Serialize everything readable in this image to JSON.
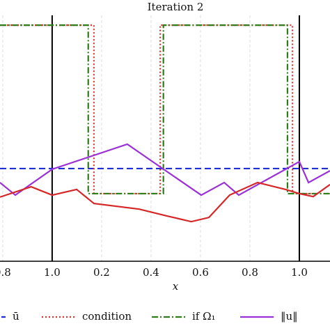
{
  "chart_data": {
    "type": "line",
    "title": "Iteration 2",
    "x_label": "x",
    "xlim": [
      -0.211,
      1.124
    ],
    "ylim": [
      0,
      1
    ],
    "grid": true,
    "xticks": [
      {
        "value": -0.2,
        "label": "0.8"
      },
      {
        "value": 0,
        "label": "1.0"
      },
      0.2,
      0.4,
      0.6,
      0.8,
      {
        "value": 1.0,
        "label": "1.0"
      }
    ],
    "series": [
      {
        "name": "ū",
        "color": "#1f2fd0",
        "style": "dashed",
        "x": [
          -0.211,
          1.124
        ],
        "values": [
          0.377,
          0.377
        ]
      },
      {
        "name": "condition",
        "color": "#e0302a",
        "style": "dotted",
        "x": [
          -0.211,
          0.169,
          0.169,
          0.437,
          0.437,
          0.972,
          0.972,
          1.124
        ],
        "values": [
          0.96,
          0.96,
          0.275,
          0.275,
          0.96,
          0.96,
          0.275,
          0.275
        ]
      },
      {
        "name": "if Ω₁",
        "color": "#2e7d1a",
        "style": "dashdot",
        "x": [
          -0.211,
          0.146,
          0.146,
          0.45,
          0.45,
          0.952,
          0.952,
          1.124
        ],
        "values": [
          0.96,
          0.96,
          0.275,
          0.275,
          0.96,
          0.96,
          0.275,
          0.275
        ]
      },
      {
        "name": "‖u‖",
        "color": "#9a30d8",
        "style": "solid",
        "x": [
          -0.211,
          -0.149,
          0,
          0.304,
          0.451,
          0.603,
          0.696,
          0.755,
          1.0,
          1.037,
          1.124
        ],
        "values": [
          0.32,
          0.269,
          0.374,
          0.476,
          0.374,
          0.269,
          0.32,
          0.269,
          0.405,
          0.32,
          0.368
        ]
      },
      {
        "color": "#d62728",
        "style": "solid",
        "x": [
          -0.211,
          -0.085,
          0,
          0.099,
          0.169,
          0.352,
          0.465,
          0.563,
          0.634,
          0.718,
          0.831,
          0.944,
          1.0,
          1.056,
          1.124
        ],
        "values": [
          0.261,
          0.303,
          0.269,
          0.292,
          0.235,
          0.212,
          0.184,
          0.161,
          0.178,
          0.269,
          0.32,
          0.292,
          0.275,
          0.263,
          0.312
        ]
      }
    ]
  }
}
